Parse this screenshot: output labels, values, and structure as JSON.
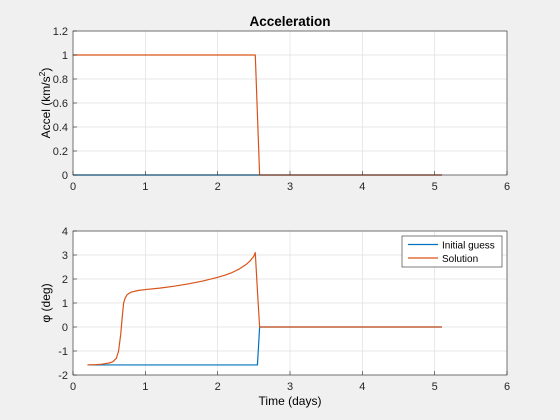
{
  "chart_data": [
    {
      "type": "line",
      "title": "Acceleration",
      "xlabel": "",
      "ylabel": "Accel (km/s²)",
      "xlim": [
        0,
        6
      ],
      "ylim": [
        0,
        1.2
      ],
      "xticks": [
        0,
        1,
        2,
        3,
        4,
        5,
        6
      ],
      "yticks": [
        0,
        0.2,
        0.4,
        0.6,
        0.8,
        1,
        1.2
      ],
      "grid": true,
      "legend": null,
      "series": [
        {
          "color": "#0072BD",
          "x": [
            0,
            5.1
          ],
          "y": [
            0,
            0
          ]
        },
        {
          "color": "#D95319",
          "x": [
            0,
            0.8,
            2.52,
            2.55,
            2.58,
            2.62,
            5.1
          ],
          "y": [
            1,
            1,
            1,
            0.5,
            0,
            0,
            0
          ]
        }
      ]
    },
    {
      "type": "line",
      "title": "",
      "xlabel": "Time (days)",
      "ylabel": "φ (deg)",
      "xlim": [
        0,
        6
      ],
      "ylim": [
        -2,
        4
      ],
      "xticks": [
        0,
        1,
        2,
        3,
        4,
        5,
        6
      ],
      "yticks": [
        -2,
        -1,
        0,
        1,
        2,
        3,
        4
      ],
      "grid": true,
      "legend": "top-right",
      "series": [
        {
          "name": "Initial guess",
          "color": "#0072BD",
          "x": [
            0.2,
            2.55,
            2.58,
            5.1
          ],
          "y": [
            -1.58,
            -1.58,
            0,
            0
          ]
        },
        {
          "name": "Solution",
          "color": "#D95319",
          "x": [
            0.2,
            0.3,
            0.4,
            0.5,
            0.55,
            0.6,
            0.63,
            0.66,
            0.68,
            0.7,
            0.72,
            0.75,
            0.8,
            0.9,
            1.0,
            1.2,
            1.4,
            1.6,
            1.8,
            2.0,
            2.1,
            2.2,
            2.3,
            2.4,
            2.45,
            2.5,
            2.52,
            2.55,
            2.58,
            2.62,
            5.1
          ],
          "y": [
            -1.58,
            -1.57,
            -1.55,
            -1.5,
            -1.45,
            -1.3,
            -1.0,
            -0.3,
            0.4,
            1.0,
            1.2,
            1.35,
            1.45,
            1.52,
            1.56,
            1.62,
            1.7,
            1.8,
            1.92,
            2.07,
            2.16,
            2.27,
            2.42,
            2.62,
            2.76,
            2.95,
            3.1,
            1.5,
            0,
            0,
            0
          ]
        }
      ]
    }
  ]
}
